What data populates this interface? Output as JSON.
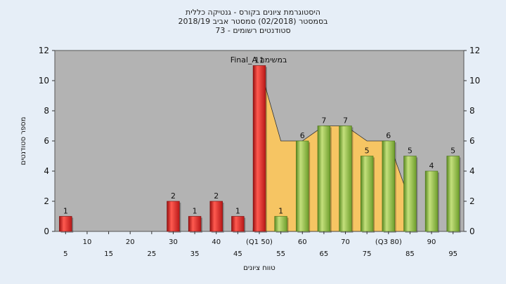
{
  "title_lines": [
    "היסטוגרמת ציונים בקורס - גנטיקה כללית",
    "בסמסטר  (02/2018)  סמסטר אביב 2018/19",
    "סטודנטים רשומים - 73"
  ],
  "chart_data": {
    "type": "bar",
    "xlabel": "טווח ציונים",
    "ylabel": "מספר סטודנטים",
    "ylim": [
      0,
      12
    ],
    "y_ticks": [
      0,
      2,
      4,
      6,
      8,
      10,
      12
    ],
    "grid": false,
    "x_tick_labels": [
      "5",
      "10",
      "15",
      "20",
      "25",
      "30",
      "35",
      "40",
      "45",
      "(Q1 50)",
      "55",
      "60",
      "65",
      "70",
      "75",
      "(Q3 80)",
      "85",
      "90",
      "95"
    ],
    "series": [
      {
        "values": [
          1,
          0,
          0,
          0,
          0,
          2,
          1,
          2,
          1,
          11,
          1,
          6,
          7,
          7,
          5,
          6,
          5,
          4,
          5
        ]
      }
    ],
    "bar_colors": [
      "red",
      "red",
      "red",
      "red",
      "red",
      "red",
      "red",
      "red",
      "red",
      "red",
      "green",
      "green",
      "green",
      "green",
      "green",
      "green",
      "green",
      "green",
      "green"
    ],
    "annotation": "Final_A במשימה",
    "area_overlay": [
      0,
      0,
      0,
      0,
      0,
      0,
      0,
      0,
      0,
      11,
      6,
      6,
      7,
      7,
      6,
      6,
      2,
      0,
      0
    ]
  },
  "colors": {
    "page_bg": "#e6eef7",
    "plot_bg": "#b3b3b3",
    "red_bar": "#e0302e",
    "green_bar": "#8fbe4a",
    "area_fill": "#fdc75a"
  }
}
